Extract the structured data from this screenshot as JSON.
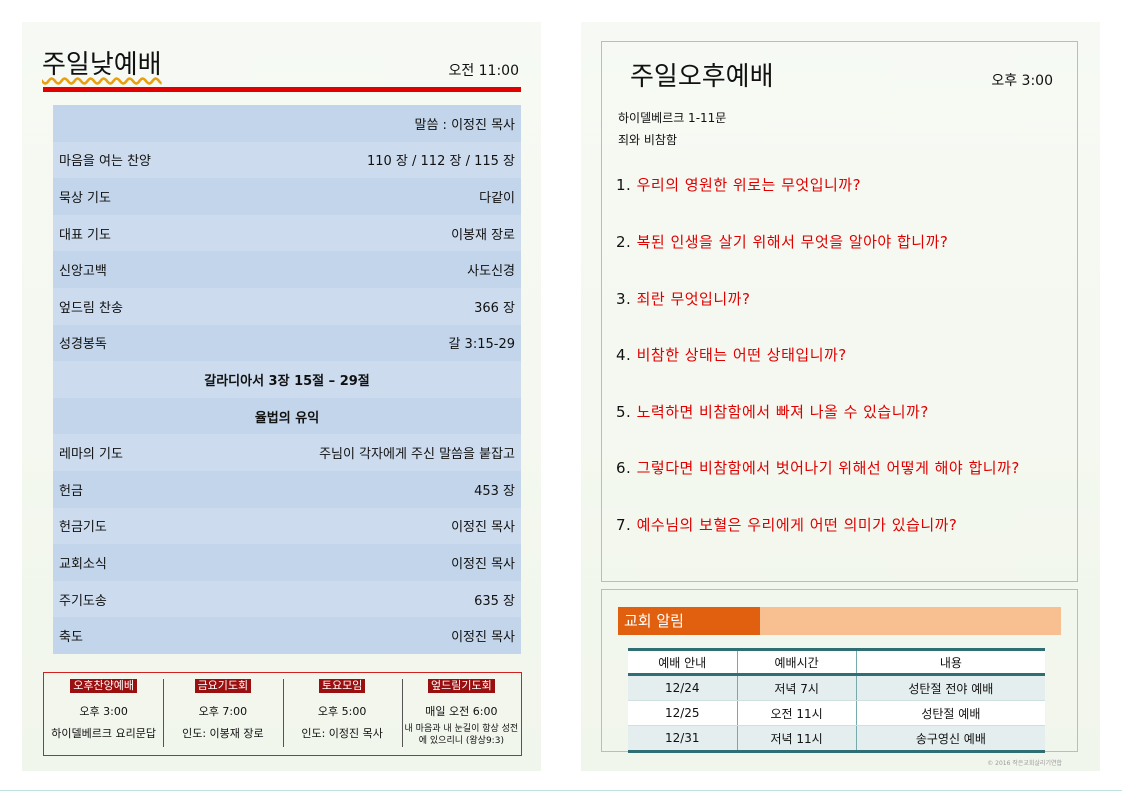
{
  "left": {
    "title": "주일낮예배",
    "time": "오전  11:00",
    "order": [
      {
        "type": "right",
        "right": "말씀 : 이정진 목사"
      },
      {
        "type": "split",
        "left": "마음을 여는 찬양",
        "right": "110 장 / 112 장 / 115 장"
      },
      {
        "type": "split",
        "left": "묵상 기도",
        "right": "다같이"
      },
      {
        "type": "split",
        "left": "대표 기도",
        "right": "이봉재 장로"
      },
      {
        "type": "split",
        "left": "신앙고백",
        "right": "사도신경"
      },
      {
        "type": "split",
        "left": "엎드림 찬송",
        "right": "366 장"
      },
      {
        "type": "split",
        "left": "성경봉독",
        "right": "갈 3:15-29"
      },
      {
        "type": "center",
        "center": "갈라디아서 3장 15절 – 29절"
      },
      {
        "type": "center",
        "center": "율법의 유익"
      },
      {
        "type": "split",
        "left": "레마의 기도",
        "right": "주님이 각자에게 주신 말씀을 붙잡고"
      },
      {
        "type": "split",
        "left": "헌금",
        "right": "453 장"
      },
      {
        "type": "split",
        "left": "헌금기도",
        "right": "이정진 목사"
      },
      {
        "type": "split",
        "left": "교회소식",
        "right": "이정진 목사"
      },
      {
        "type": "split",
        "left": "주기도송",
        "right": "635 장"
      },
      {
        "type": "split",
        "left": "축도",
        "right": "이정진 목사"
      }
    ],
    "meetings": [
      {
        "head": "오후찬양예배",
        "time": "오후  3:00",
        "desc": "하이델베르크 요리문답"
      },
      {
        "head": "금요기도회",
        "time": "오후  7:00",
        "desc": "인도: 이봉재 장로"
      },
      {
        "head": "토요모임",
        "time": "오후  5:00",
        "desc": "인도: 이정진 목사"
      },
      {
        "head": "엎드림기도회",
        "time": "매일  오전  6:00",
        "desc": "내 마음과 내 눈길이 항상 성전에 있으리니 (왕상9:3)"
      }
    ]
  },
  "right": {
    "title": "주일오후예배",
    "time": "오후   3:00",
    "subtitle1": "하이델베르크 1-11문",
    "subtitle2": "죄와 비참함",
    "questions": [
      {
        "num": "1.",
        "text": "우리의 영원한 위로는 무엇입니까?"
      },
      {
        "num": "2.",
        "text": "복된 인생을 살기 위해서 무엇을 알아야 합니까?"
      },
      {
        "num": "3.",
        "text": "죄란 무엇입니까?"
      },
      {
        "num": "4.",
        "text": "비참한 상태는 어떤 상태입니까?"
      },
      {
        "num": "5.",
        "text": "노력하면 비참함에서 빠져 나올 수 있습니까?"
      },
      {
        "num": "6.",
        "text": "그렇다면 비참함에서 벗어나기 위해선 어떻게 해야 합니까?"
      },
      {
        "num": "7.",
        "text": "예수님의 보혈은 우리에게 어떤 의미가 있습니까?"
      }
    ],
    "notice": {
      "label": "교회 알림",
      "headers": [
        "예배 안내",
        "예배시간",
        "내용"
      ],
      "rows": [
        [
          "12/24",
          "저녁 7시",
          "성탄절 전야 예배"
        ],
        [
          "12/25",
          "오전 11시",
          "성탄절 예배"
        ],
        [
          "12/31",
          "저녁 11시",
          "송구영신 예배"
        ]
      ]
    },
    "copyright": "© 2016 작은교회살리기연합"
  }
}
